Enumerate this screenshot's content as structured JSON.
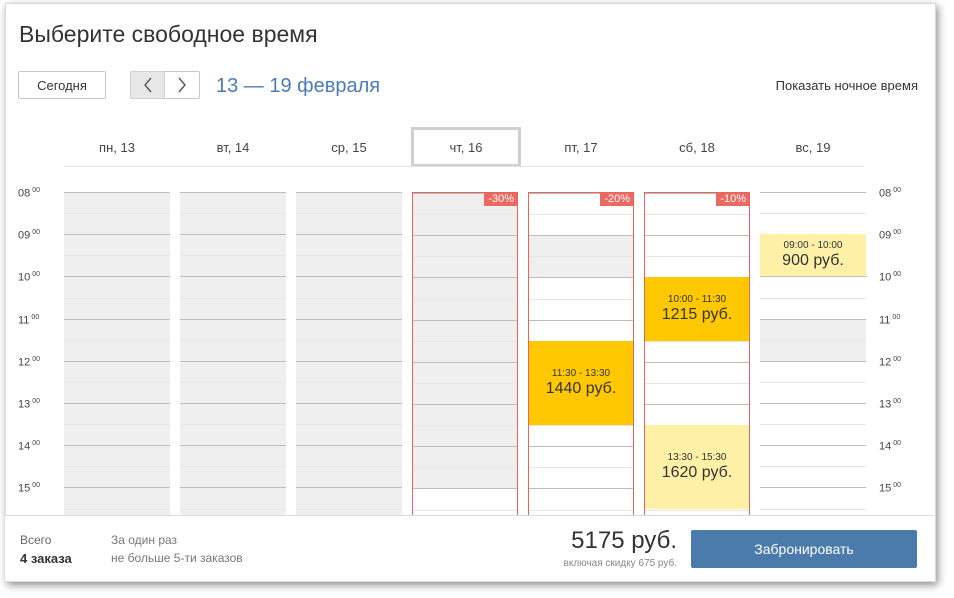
{
  "title": "Выберите свободное время",
  "today_label": "Сегодня",
  "date_range": "13 — 19 февраля",
  "night_toggle": "Показать ночное время",
  "days": [
    {
      "label": "пн, 13"
    },
    {
      "label": "вт, 14"
    },
    {
      "label": "ср, 15"
    },
    {
      "label": "чт, 16",
      "selected": true,
      "discount": "-30%"
    },
    {
      "label": "пт, 17",
      "discount": "-20%"
    },
    {
      "label": "сб, 18",
      "discount": "-10%"
    },
    {
      "label": "вс, 19"
    }
  ],
  "hours": [
    {
      "h": "08",
      "m": "00"
    },
    {
      "h": "09",
      "m": "00"
    },
    {
      "h": "10",
      "m": "00"
    },
    {
      "h": "11",
      "m": "00"
    },
    {
      "h": "12",
      "m": "00"
    },
    {
      "h": "13",
      "m": "00"
    },
    {
      "h": "14",
      "m": "00"
    },
    {
      "h": "15",
      "m": "00"
    }
  ],
  "bookings": [
    {
      "day": 4,
      "time": "11:30 - 13:30",
      "price": "1440 руб.",
      "start": 11.5,
      "end": 13.5,
      "status": "selected"
    },
    {
      "day": 5,
      "time": "10:00 - 11:30",
      "price": "1215 руб.",
      "start": 10.0,
      "end": 11.5,
      "status": "selected"
    },
    {
      "day": 5,
      "time": "13:30 - 15:30",
      "price": "1620 руб.",
      "start": 13.5,
      "end": 15.5,
      "status": "pending"
    },
    {
      "day": 6,
      "time": "09:00 - 10:00",
      "price": "900 руб.",
      "start": 9.0,
      "end": 10.0,
      "status": "pending"
    }
  ],
  "footer": {
    "total_label": "Всего",
    "total_value": "4 заказа",
    "limit_label": "За один раз",
    "limit_value": "не больше 5-ти заказов",
    "price": "5175 руб.",
    "discount_note": "включая скидку 675 руб.",
    "book_button": "Забронировать"
  },
  "colors": {
    "accent": "#4a7bab",
    "link": "#4a7db5",
    "discount": "#ea6961",
    "selected_slot": "#ffc800",
    "pending_slot": "#fff0a8",
    "unavailable": "#efefef"
  }
}
